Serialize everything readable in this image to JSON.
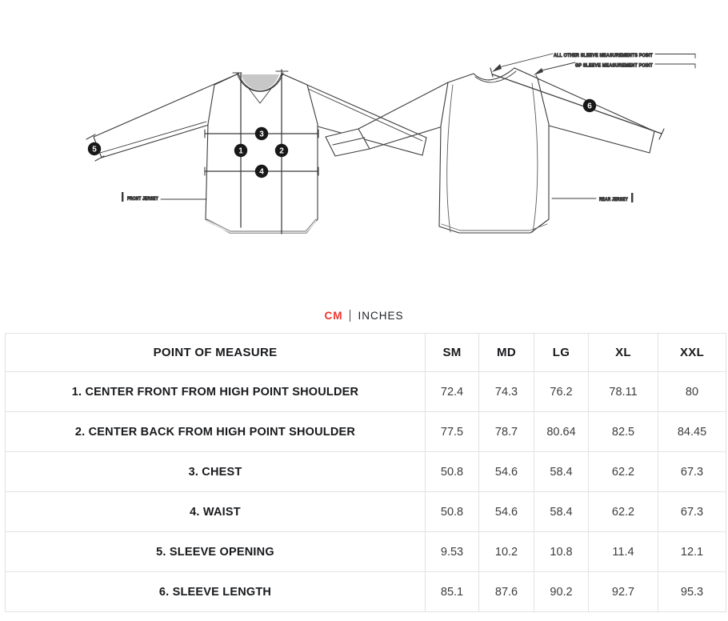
{
  "diagram": {
    "front_label": "FRONT JERSEY",
    "rear_label": "REAR JERSEY",
    "callouts": {
      "all_other": "ALL OTHER SLEEVE MEASUREMENTS POINT",
      "gp": "GP SLEEVE MEASUREMENT POINT"
    },
    "markers": [
      "1",
      "2",
      "3",
      "4",
      "5",
      "6"
    ]
  },
  "unit_toggle": {
    "cm": "CM",
    "inches": "INCHES",
    "active": "CM",
    "active_color": "#ee352b"
  },
  "table": {
    "header": [
      "POINT OF MEASURE",
      "SM",
      "MD",
      "LG",
      "XL",
      "XXL"
    ],
    "rows": [
      {
        "label": "1. CENTER FRONT FROM HIGH POINT SHOULDER",
        "values": [
          "72.4",
          "74.3",
          "76.2",
          "78.11",
          "80"
        ]
      },
      {
        "label": "2. CENTER BACK FROM HIGH POINT SHOULDER",
        "values": [
          "77.5",
          "78.7",
          "80.64",
          "82.5",
          "84.45"
        ]
      },
      {
        "label": "3. CHEST",
        "values": [
          "50.8",
          "54.6",
          "58.4",
          "62.2",
          "67.3"
        ]
      },
      {
        "label": "4. WAIST",
        "values": [
          "50.8",
          "54.6",
          "58.4",
          "62.2",
          "67.3"
        ]
      },
      {
        "label": "5. SLEEVE OPENING",
        "values": [
          "9.53",
          "10.2",
          "10.8",
          "11.4",
          "12.1"
        ]
      },
      {
        "label": "6. SLEEVE LENGTH",
        "values": [
          "85.1",
          "87.6",
          "90.2",
          "92.7",
          "95.3"
        ]
      }
    ]
  },
  "colors": {
    "accent_red": "#ee352b",
    "header_text": "#17191c",
    "value_text": "#3c3c3c",
    "table_border": "#e2e2e2",
    "line_art": "#3b3b3b"
  }
}
